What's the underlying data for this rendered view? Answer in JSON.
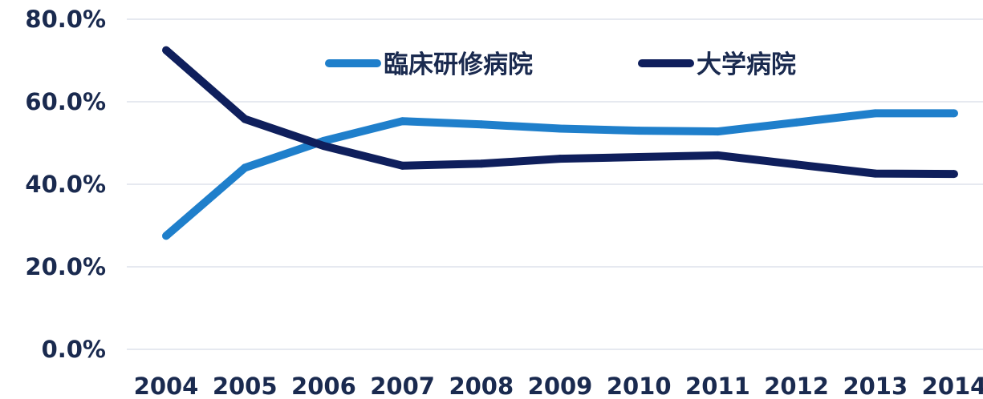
{
  "chart_data": {
    "type": "line",
    "categories": [
      "2004",
      "2005",
      "2006",
      "2007",
      "2008",
      "2009",
      "2010",
      "2011",
      "2012",
      "2013",
      "2014"
    ],
    "series": [
      {
        "name": "臨床研修病院",
        "color": "#1f7fcb",
        "values": [
          27.5,
          44.0,
          50.5,
          55.3,
          54.5,
          53.5,
          53.0,
          52.8,
          55.0,
          57.2,
          57.2
        ]
      },
      {
        "name": "大学病院",
        "color": "#0f1f5c",
        "values": [
          72.5,
          55.8,
          49.3,
          44.5,
          45.0,
          46.2,
          46.6,
          47.0,
          44.8,
          42.6,
          42.5
        ]
      }
    ],
    "yticks": [
      "0.0%",
      "20.0%",
      "40.0%",
      "60.0%",
      "80.0%"
    ],
    "ylim": [
      0,
      80
    ],
    "grid": true,
    "legend_position": "top"
  }
}
